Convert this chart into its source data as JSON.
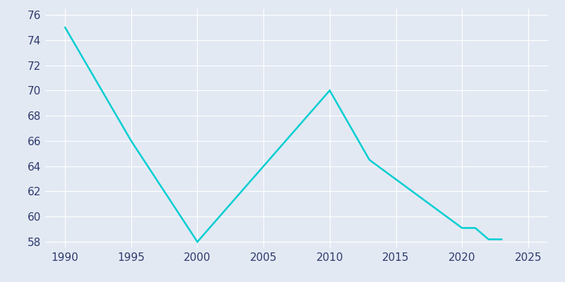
{
  "x": [
    1990,
    1995,
    2000,
    2010,
    2013,
    2020,
    2021,
    2022,
    2023
  ],
  "y": [
    75.0,
    66.0,
    58.0,
    70.0,
    64.5,
    59.1,
    59.1,
    58.2,
    58.2
  ],
  "line_color": "#00CED1",
  "background_color": "#E3E9F3",
  "grid_color": "#FFFFFF",
  "axis_label_color": "#2E3A6E",
  "ylim": [
    57.5,
    76.5
  ],
  "yticks": [
    58,
    60,
    62,
    64,
    66,
    68,
    70,
    72,
    74,
    76
  ],
  "xlim": [
    1988.5,
    2026.5
  ],
  "xticks": [
    1990,
    1995,
    2000,
    2005,
    2010,
    2015,
    2020,
    2025
  ],
  "linewidth": 1.8
}
